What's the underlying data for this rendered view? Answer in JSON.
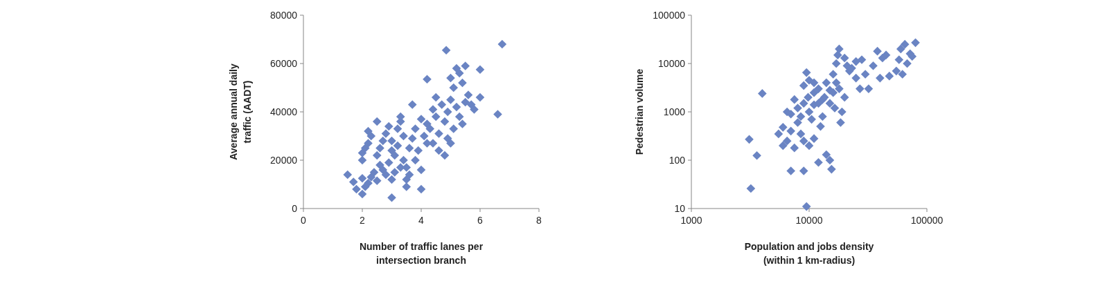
{
  "chart_data": [
    {
      "type": "scatter",
      "xlabel": "Number of traffic lanes per intersection branch",
      "ylabel": "Average annual daily traffic (AADT)",
      "xlim": [
        0,
        8
      ],
      "xticks": [
        0,
        2,
        4,
        6,
        8
      ],
      "ylim": [
        0,
        80000
      ],
      "yticks": [
        0,
        20000,
        40000,
        60000,
        80000
      ],
      "marker": "diamond",
      "grid": false,
      "series": [
        {
          "color": "#6a84c3",
          "x": [
            1.5,
            1.7,
            1.8,
            2.0,
            2.1,
            2.0,
            2.2,
            2.3,
            2.0,
            2.0,
            2.1,
            2.2,
            2.2,
            2.5,
            2.3,
            2.5,
            2.6,
            2.7,
            2.8,
            2.9,
            3.0,
            3.0,
            3.1,
            2.6,
            2.7,
            2.8,
            2.9,
            3.0,
            3.0,
            3.1,
            3.2,
            3.2,
            3.3,
            3.3,
            3.4,
            3.4,
            3.5,
            3.5,
            3.5,
            3.6,
            3.6,
            3.7,
            3.7,
            3.8,
            3.9,
            4.0,
            4.0,
            4.0,
            4.1,
            4.2,
            4.2,
            4.3,
            4.4,
            4.4,
            4.5,
            4.5,
            4.6,
            4.6,
            4.7,
            4.8,
            4.8,
            4.85,
            4.9,
            4.9,
            5.0,
            5.0,
            5.0,
            5.1,
            5.1,
            5.2,
            5.2,
            5.3,
            5.3,
            5.4,
            5.4,
            5.5,
            5.5,
            5.6,
            5.7,
            5.8,
            6.0,
            6.0,
            6.6,
            6.75,
            2.4,
            2.5,
            3.8,
            4.2,
            3.3
          ],
          "values": [
            14000,
            11000,
            8000,
            6000,
            9000,
            12500,
            10500,
            13000,
            20000,
            23000,
            25000,
            27000,
            32000,
            36000,
            30000,
            22000,
            18000,
            16000,
            14000,
            19000,
            12000,
            4500,
            15000,
            25000,
            28000,
            31000,
            34000,
            24000,
            28000,
            22000,
            26000,
            33000,
            36000,
            38000,
            30000,
            20000,
            17000,
            12000,
            9000,
            14000,
            25000,
            29000,
            43000,
            33000,
            24000,
            16000,
            8000,
            37000,
            30000,
            35000,
            53500,
            33000,
            27000,
            41000,
            38000,
            46000,
            24000,
            31000,
            43000,
            22000,
            36000,
            65500,
            40000,
            29000,
            27000,
            45000,
            54000,
            33000,
            50000,
            58000,
            42000,
            56000,
            38000,
            35000,
            52000,
            44000,
            59000,
            47000,
            43000,
            41000,
            46000,
            57500,
            39000,
            68000,
            15000,
            11500,
            20000,
            27000,
            17000
          ]
        }
      ]
    },
    {
      "type": "scatter",
      "xlabel": "Population and jobs density (within 1 km-radius)",
      "ylabel": "Pedestrian volume",
      "log": "xy",
      "xlim": [
        1000,
        100000
      ],
      "xticks": [
        1000,
        10000,
        100000
      ],
      "ylim": [
        10,
        100000
      ],
      "yticks": [
        10,
        100,
        1000,
        10000,
        100000
      ],
      "marker": "diamond",
      "grid": false,
      "series": [
        {
          "color": "#6a84c3",
          "x": [
            3100,
            3200,
            3600,
            4000,
            5500,
            6000,
            6000,
            6500,
            7000,
            7500,
            7000,
            7500,
            8000,
            8500,
            9000,
            9000,
            9000,
            9500,
            9500,
            9800,
            10000,
            10000,
            10500,
            11000,
            11000,
            11000,
            12000,
            12000,
            12500,
            13000,
            13000,
            14000,
            14000,
            15000,
            15000,
            15500,
            16000,
            16000,
            17000,
            17500,
            18000,
            18000,
            18500,
            19000,
            20000,
            21000,
            22000,
            25000,
            27000,
            28000,
            30000,
            32000,
            35000,
            38000,
            40000,
            42000,
            45000,
            48000,
            55000,
            58000,
            60000,
            62000,
            65000,
            68000,
            72000,
            75000,
            80000,
            6500,
            8000,
            9000,
            11000,
            12000,
            10000,
            13500,
            16500,
            17000,
            20000,
            23000,
            25000,
            15000,
            7000,
            8500
          ],
          "values": [
            270,
            26,
            125,
            2400,
            350,
            200,
            480,
            250,
            60,
            180,
            900,
            1800,
            1200,
            350,
            60,
            250,
            3500,
            6500,
            11,
            2000,
            1000,
            4500,
            700,
            2500,
            1400,
            280,
            90,
            3000,
            500,
            1800,
            800,
            4000,
            130,
            1500,
            100,
            65,
            2500,
            6000,
            10000,
            15000,
            20000,
            3000,
            600,
            1000,
            13000,
            9000,
            7000,
            5000,
            3000,
            12000,
            6000,
            3000,
            9000,
            18000,
            5000,
            13000,
            15000,
            5500,
            7000,
            12000,
            20000,
            6000,
            25000,
            10000,
            16000,
            14000,
            27000,
            1000,
            600,
            1500,
            4000,
            1500,
            200,
            2000,
            1200,
            4000,
            2000,
            8000,
            11000,
            2800,
            400,
            800
          ]
        }
      ]
    }
  ]
}
